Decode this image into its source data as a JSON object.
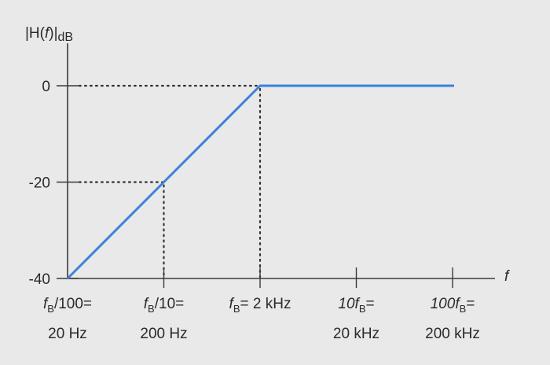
{
  "chart_data": {
    "type": "line",
    "ylabel": "|H(f)|dB",
    "xlabel": "f",
    "x_scale": "log",
    "x": [
      20,
      200,
      2000,
      20000,
      200000
    ],
    "series": [
      {
        "values": [
          -40,
          -20,
          0,
          0,
          0
        ]
      }
    ],
    "ylim": [
      -40,
      0
    ],
    "y_ticks": [
      0,
      -20,
      -40
    ],
    "x_ticks": [
      {
        "value": 20,
        "line1": "fB/100=",
        "line2": "20 Hz"
      },
      {
        "value": 200,
        "line1": "fB/10=",
        "line2": "200 Hz"
      },
      {
        "value": 2000,
        "line1": "fB= 2 kHz",
        "line2": ""
      },
      {
        "value": 20000,
        "line1": "10fB=",
        "line2": "20 kHz"
      },
      {
        "value": 200000,
        "line1": "100fB=",
        "line2": "200 kHz"
      }
    ],
    "guides": [
      {
        "x": 200,
        "y": -20
      },
      {
        "x": 2000,
        "y": 0
      }
    ],
    "grid": false,
    "colors": {
      "curve": "#3b82dc",
      "axis": "#3a3a3a",
      "background": "#e9e9ea"
    }
  }
}
